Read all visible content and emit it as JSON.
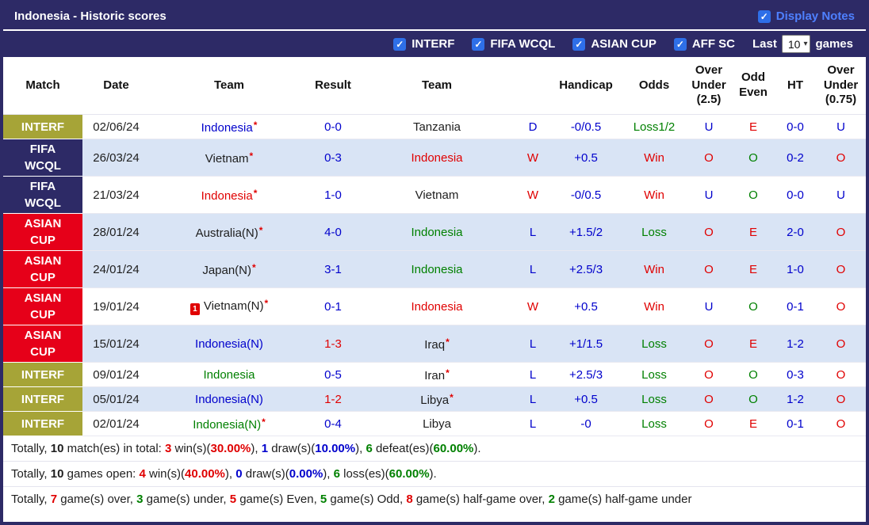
{
  "colors": {
    "accent": "#2d2a66",
    "interf_bg": "#a6a437",
    "fifa_bg": "#2d2a66",
    "asian_bg": "#e60019",
    "row_shade": "#d9e4f5",
    "blue": "#0000cc",
    "red": "#e00000",
    "green": "#008000",
    "checkbox_blue": "#2e6fe8",
    "display_notes_blue": "#4e80ff"
  },
  "title_bar": {
    "title": "Indonesia - Historic scores",
    "display_notes": {
      "label": "Display Notes",
      "checked": true
    }
  },
  "filter_bar": {
    "filters": [
      {
        "label": "INTERF",
        "checked": true
      },
      {
        "label": "FIFA WCQL",
        "checked": true
      },
      {
        "label": "ASIAN CUP",
        "checked": true
      },
      {
        "label": "AFF SC",
        "checked": true
      }
    ],
    "last_label": "Last",
    "last_value": "10",
    "games_label": "games"
  },
  "table": {
    "headers": [
      "Match",
      "Date",
      "Team",
      "Result",
      "Team",
      "",
      "Handicap",
      "Odds",
      "Over Under (2.5)",
      "Odd Even",
      "HT",
      "Over Under (0.75)"
    ],
    "rows": [
      {
        "competition": "INTERF",
        "comp_type": "interf",
        "date": "02/06/24",
        "shaded": false,
        "home": {
          "name": "Indonesia",
          "star": true,
          "color": "blue",
          "red_card": false
        },
        "score": {
          "text": "0-0",
          "color": "blue"
        },
        "away": {
          "name": "Tanzania",
          "star": false,
          "color": "black"
        },
        "outcome": {
          "text": "D",
          "color": "blue"
        },
        "handicap": {
          "text": "-0/0.5",
          "color": "blue"
        },
        "odds": {
          "text": "Loss1/2",
          "color": "green"
        },
        "ou25": {
          "text": "U",
          "color": "blue"
        },
        "odd_even": {
          "text": "E",
          "color": "red"
        },
        "ht": {
          "text": "0-0",
          "color": "blue"
        },
        "ou075": {
          "text": "U",
          "color": "blue"
        }
      },
      {
        "competition": "FIFA WCQL",
        "comp_type": "fifa",
        "date": "26/03/24",
        "shaded": true,
        "home": {
          "name": "Vietnam",
          "star": true,
          "color": "black",
          "red_card": false
        },
        "score": {
          "text": "0-3",
          "color": "blue"
        },
        "away": {
          "name": "Indonesia",
          "star": false,
          "color": "red"
        },
        "outcome": {
          "text": "W",
          "color": "red"
        },
        "handicap": {
          "text": "+0.5",
          "color": "blue"
        },
        "odds": {
          "text": "Win",
          "color": "red"
        },
        "ou25": {
          "text": "O",
          "color": "red"
        },
        "odd_even": {
          "text": "O",
          "color": "green"
        },
        "ht": {
          "text": "0-2",
          "color": "blue"
        },
        "ou075": {
          "text": "O",
          "color": "red"
        }
      },
      {
        "competition": "FIFA WCQL",
        "comp_type": "fifa",
        "date": "21/03/24",
        "shaded": false,
        "home": {
          "name": "Indonesia",
          "star": true,
          "color": "red",
          "red_card": false
        },
        "score": {
          "text": "1-0",
          "color": "blue"
        },
        "away": {
          "name": "Vietnam",
          "star": false,
          "color": "black"
        },
        "outcome": {
          "text": "W",
          "color": "red"
        },
        "handicap": {
          "text": "-0/0.5",
          "color": "blue"
        },
        "odds": {
          "text": "Win",
          "color": "red"
        },
        "ou25": {
          "text": "U",
          "color": "blue"
        },
        "odd_even": {
          "text": "O",
          "color": "green"
        },
        "ht": {
          "text": "0-0",
          "color": "blue"
        },
        "ou075": {
          "text": "U",
          "color": "blue"
        }
      },
      {
        "competition": "ASIAN CUP",
        "comp_type": "asian",
        "date": "28/01/24",
        "shaded": true,
        "home": {
          "name": "Australia(N)",
          "star": true,
          "color": "black",
          "red_card": false
        },
        "score": {
          "text": "4-0",
          "color": "blue"
        },
        "away": {
          "name": "Indonesia",
          "star": false,
          "color": "green"
        },
        "outcome": {
          "text": "L",
          "color": "blue"
        },
        "handicap": {
          "text": "+1.5/2",
          "color": "blue"
        },
        "odds": {
          "text": "Loss",
          "color": "green"
        },
        "ou25": {
          "text": "O",
          "color": "red"
        },
        "odd_even": {
          "text": "E",
          "color": "red"
        },
        "ht": {
          "text": "2-0",
          "color": "blue"
        },
        "ou075": {
          "text": "O",
          "color": "red"
        }
      },
      {
        "competition": "ASIAN CUP",
        "comp_type": "asian",
        "date": "24/01/24",
        "shaded": true,
        "home": {
          "name": "Japan(N)",
          "star": true,
          "color": "black",
          "red_card": false
        },
        "score": {
          "text": "3-1",
          "color": "blue"
        },
        "away": {
          "name": "Indonesia",
          "star": false,
          "color": "green"
        },
        "outcome": {
          "text": "L",
          "color": "blue"
        },
        "handicap": {
          "text": "+2.5/3",
          "color": "blue"
        },
        "odds": {
          "text": "Win",
          "color": "red"
        },
        "ou25": {
          "text": "O",
          "color": "red"
        },
        "odd_even": {
          "text": "E",
          "color": "red"
        },
        "ht": {
          "text": "1-0",
          "color": "blue"
        },
        "ou075": {
          "text": "O",
          "color": "red"
        }
      },
      {
        "competition": "ASIAN CUP",
        "comp_type": "asian",
        "date": "19/01/24",
        "shaded": false,
        "home": {
          "name": "Vietnam(N)",
          "star": true,
          "color": "black",
          "red_card": true,
          "red_card_count": "1"
        },
        "score": {
          "text": "0-1",
          "color": "blue"
        },
        "away": {
          "name": "Indonesia",
          "star": false,
          "color": "red"
        },
        "outcome": {
          "text": "W",
          "color": "red"
        },
        "handicap": {
          "text": "+0.5",
          "color": "blue"
        },
        "odds": {
          "text": "Win",
          "color": "red"
        },
        "ou25": {
          "text": "U",
          "color": "blue"
        },
        "odd_even": {
          "text": "O",
          "color": "green"
        },
        "ht": {
          "text": "0-1",
          "color": "blue"
        },
        "ou075": {
          "text": "O",
          "color": "red"
        }
      },
      {
        "competition": "ASIAN CUP",
        "comp_type": "asian",
        "date": "15/01/24",
        "shaded": true,
        "home": {
          "name": "Indonesia(N)",
          "star": false,
          "color": "blue",
          "red_card": false
        },
        "score": {
          "text": "1-3",
          "color": "red"
        },
        "away": {
          "name": "Iraq",
          "star": true,
          "color": "black"
        },
        "outcome": {
          "text": "L",
          "color": "blue"
        },
        "handicap": {
          "text": "+1/1.5",
          "color": "blue"
        },
        "odds": {
          "text": "Loss",
          "color": "green"
        },
        "ou25": {
          "text": "O",
          "color": "red"
        },
        "odd_even": {
          "text": "E",
          "color": "red"
        },
        "ht": {
          "text": "1-2",
          "color": "blue"
        },
        "ou075": {
          "text": "O",
          "color": "red"
        }
      },
      {
        "competition": "INTERF",
        "comp_type": "interf",
        "date": "09/01/24",
        "shaded": false,
        "home": {
          "name": "Indonesia",
          "star": false,
          "color": "green",
          "red_card": false
        },
        "score": {
          "text": "0-5",
          "color": "blue"
        },
        "away": {
          "name": "Iran",
          "star": true,
          "color": "black"
        },
        "outcome": {
          "text": "L",
          "color": "blue"
        },
        "handicap": {
          "text": "+2.5/3",
          "color": "blue"
        },
        "odds": {
          "text": "Loss",
          "color": "green"
        },
        "ou25": {
          "text": "O",
          "color": "red"
        },
        "odd_even": {
          "text": "O",
          "color": "green"
        },
        "ht": {
          "text": "0-3",
          "color": "blue"
        },
        "ou075": {
          "text": "O",
          "color": "red"
        }
      },
      {
        "competition": "INTERF",
        "comp_type": "interf",
        "date": "05/01/24",
        "shaded": true,
        "home": {
          "name": "Indonesia(N)",
          "star": false,
          "color": "blue",
          "red_card": false
        },
        "score": {
          "text": "1-2",
          "color": "red"
        },
        "away": {
          "name": "Libya",
          "star": true,
          "color": "black"
        },
        "outcome": {
          "text": "L",
          "color": "blue"
        },
        "handicap": {
          "text": "+0.5",
          "color": "blue"
        },
        "odds": {
          "text": "Loss",
          "color": "green"
        },
        "ou25": {
          "text": "O",
          "color": "red"
        },
        "odd_even": {
          "text": "O",
          "color": "green"
        },
        "ht": {
          "text": "1-2",
          "color": "blue"
        },
        "ou075": {
          "text": "O",
          "color": "red"
        }
      },
      {
        "competition": "INTERF",
        "comp_type": "interf",
        "date": "02/01/24",
        "shaded": false,
        "home": {
          "name": "Indonesia(N)",
          "star": true,
          "color": "green",
          "red_card": false
        },
        "score": {
          "text": "0-4",
          "color": "blue"
        },
        "away": {
          "name": "Libya",
          "star": false,
          "color": "black"
        },
        "outcome": {
          "text": "L",
          "color": "blue"
        },
        "handicap": {
          "text": "-0",
          "color": "blue"
        },
        "odds": {
          "text": "Loss",
          "color": "green"
        },
        "ou25": {
          "text": "O",
          "color": "red"
        },
        "odd_even": {
          "text": "E",
          "color": "red"
        },
        "ht": {
          "text": "0-1",
          "color": "blue"
        },
        "ou075": {
          "text": "O",
          "color": "red"
        }
      }
    ]
  },
  "summary_lines": [
    {
      "segments": [
        {
          "t": "Totally, "
        },
        {
          "t": "10",
          "b": 1
        },
        {
          "t": " match(es) in total: "
        },
        {
          "t": "3",
          "c": "red",
          "b": 1
        },
        {
          "t": " win(s)("
        },
        {
          "t": "30.00%",
          "c": "red",
          "b": 1
        },
        {
          "t": "), "
        },
        {
          "t": "1",
          "c": "blue",
          "b": 1
        },
        {
          "t": " draw(s)("
        },
        {
          "t": "10.00%",
          "c": "blue",
          "b": 1
        },
        {
          "t": "), "
        },
        {
          "t": "6",
          "c": "green",
          "b": 1
        },
        {
          "t": " defeat(es)("
        },
        {
          "t": "60.00%",
          "c": "green",
          "b": 1
        },
        {
          "t": ")."
        }
      ]
    },
    {
      "segments": [
        {
          "t": "Totally, "
        },
        {
          "t": "10",
          "b": 1
        },
        {
          "t": " games open: "
        },
        {
          "t": "4",
          "c": "red",
          "b": 1
        },
        {
          "t": " win(s)("
        },
        {
          "t": "40.00%",
          "c": "red",
          "b": 1
        },
        {
          "t": "), "
        },
        {
          "t": "0",
          "c": "blue",
          "b": 1
        },
        {
          "t": " draw(s)("
        },
        {
          "t": "0.00%",
          "c": "blue",
          "b": 1
        },
        {
          "t": "), "
        },
        {
          "t": "6",
          "c": "green",
          "b": 1
        },
        {
          "t": " loss(es)("
        },
        {
          "t": "60.00%",
          "c": "green",
          "b": 1
        },
        {
          "t": ")."
        }
      ]
    },
    {
      "segments": [
        {
          "t": "Totally, "
        },
        {
          "t": "7",
          "c": "red",
          "b": 1
        },
        {
          "t": " game(s) over, "
        },
        {
          "t": "3",
          "c": "green",
          "b": 1
        },
        {
          "t": " game(s) under, "
        },
        {
          "t": "5",
          "c": "red",
          "b": 1
        },
        {
          "t": " game(s) Even, "
        },
        {
          "t": "5",
          "c": "green",
          "b": 1
        },
        {
          "t": " game(s) Odd, "
        },
        {
          "t": "8",
          "c": "red",
          "b": 1
        },
        {
          "t": " game(s) half-game over, "
        },
        {
          "t": "2",
          "c": "green",
          "b": 1
        },
        {
          "t": " game(s) half-game under"
        }
      ]
    }
  ]
}
